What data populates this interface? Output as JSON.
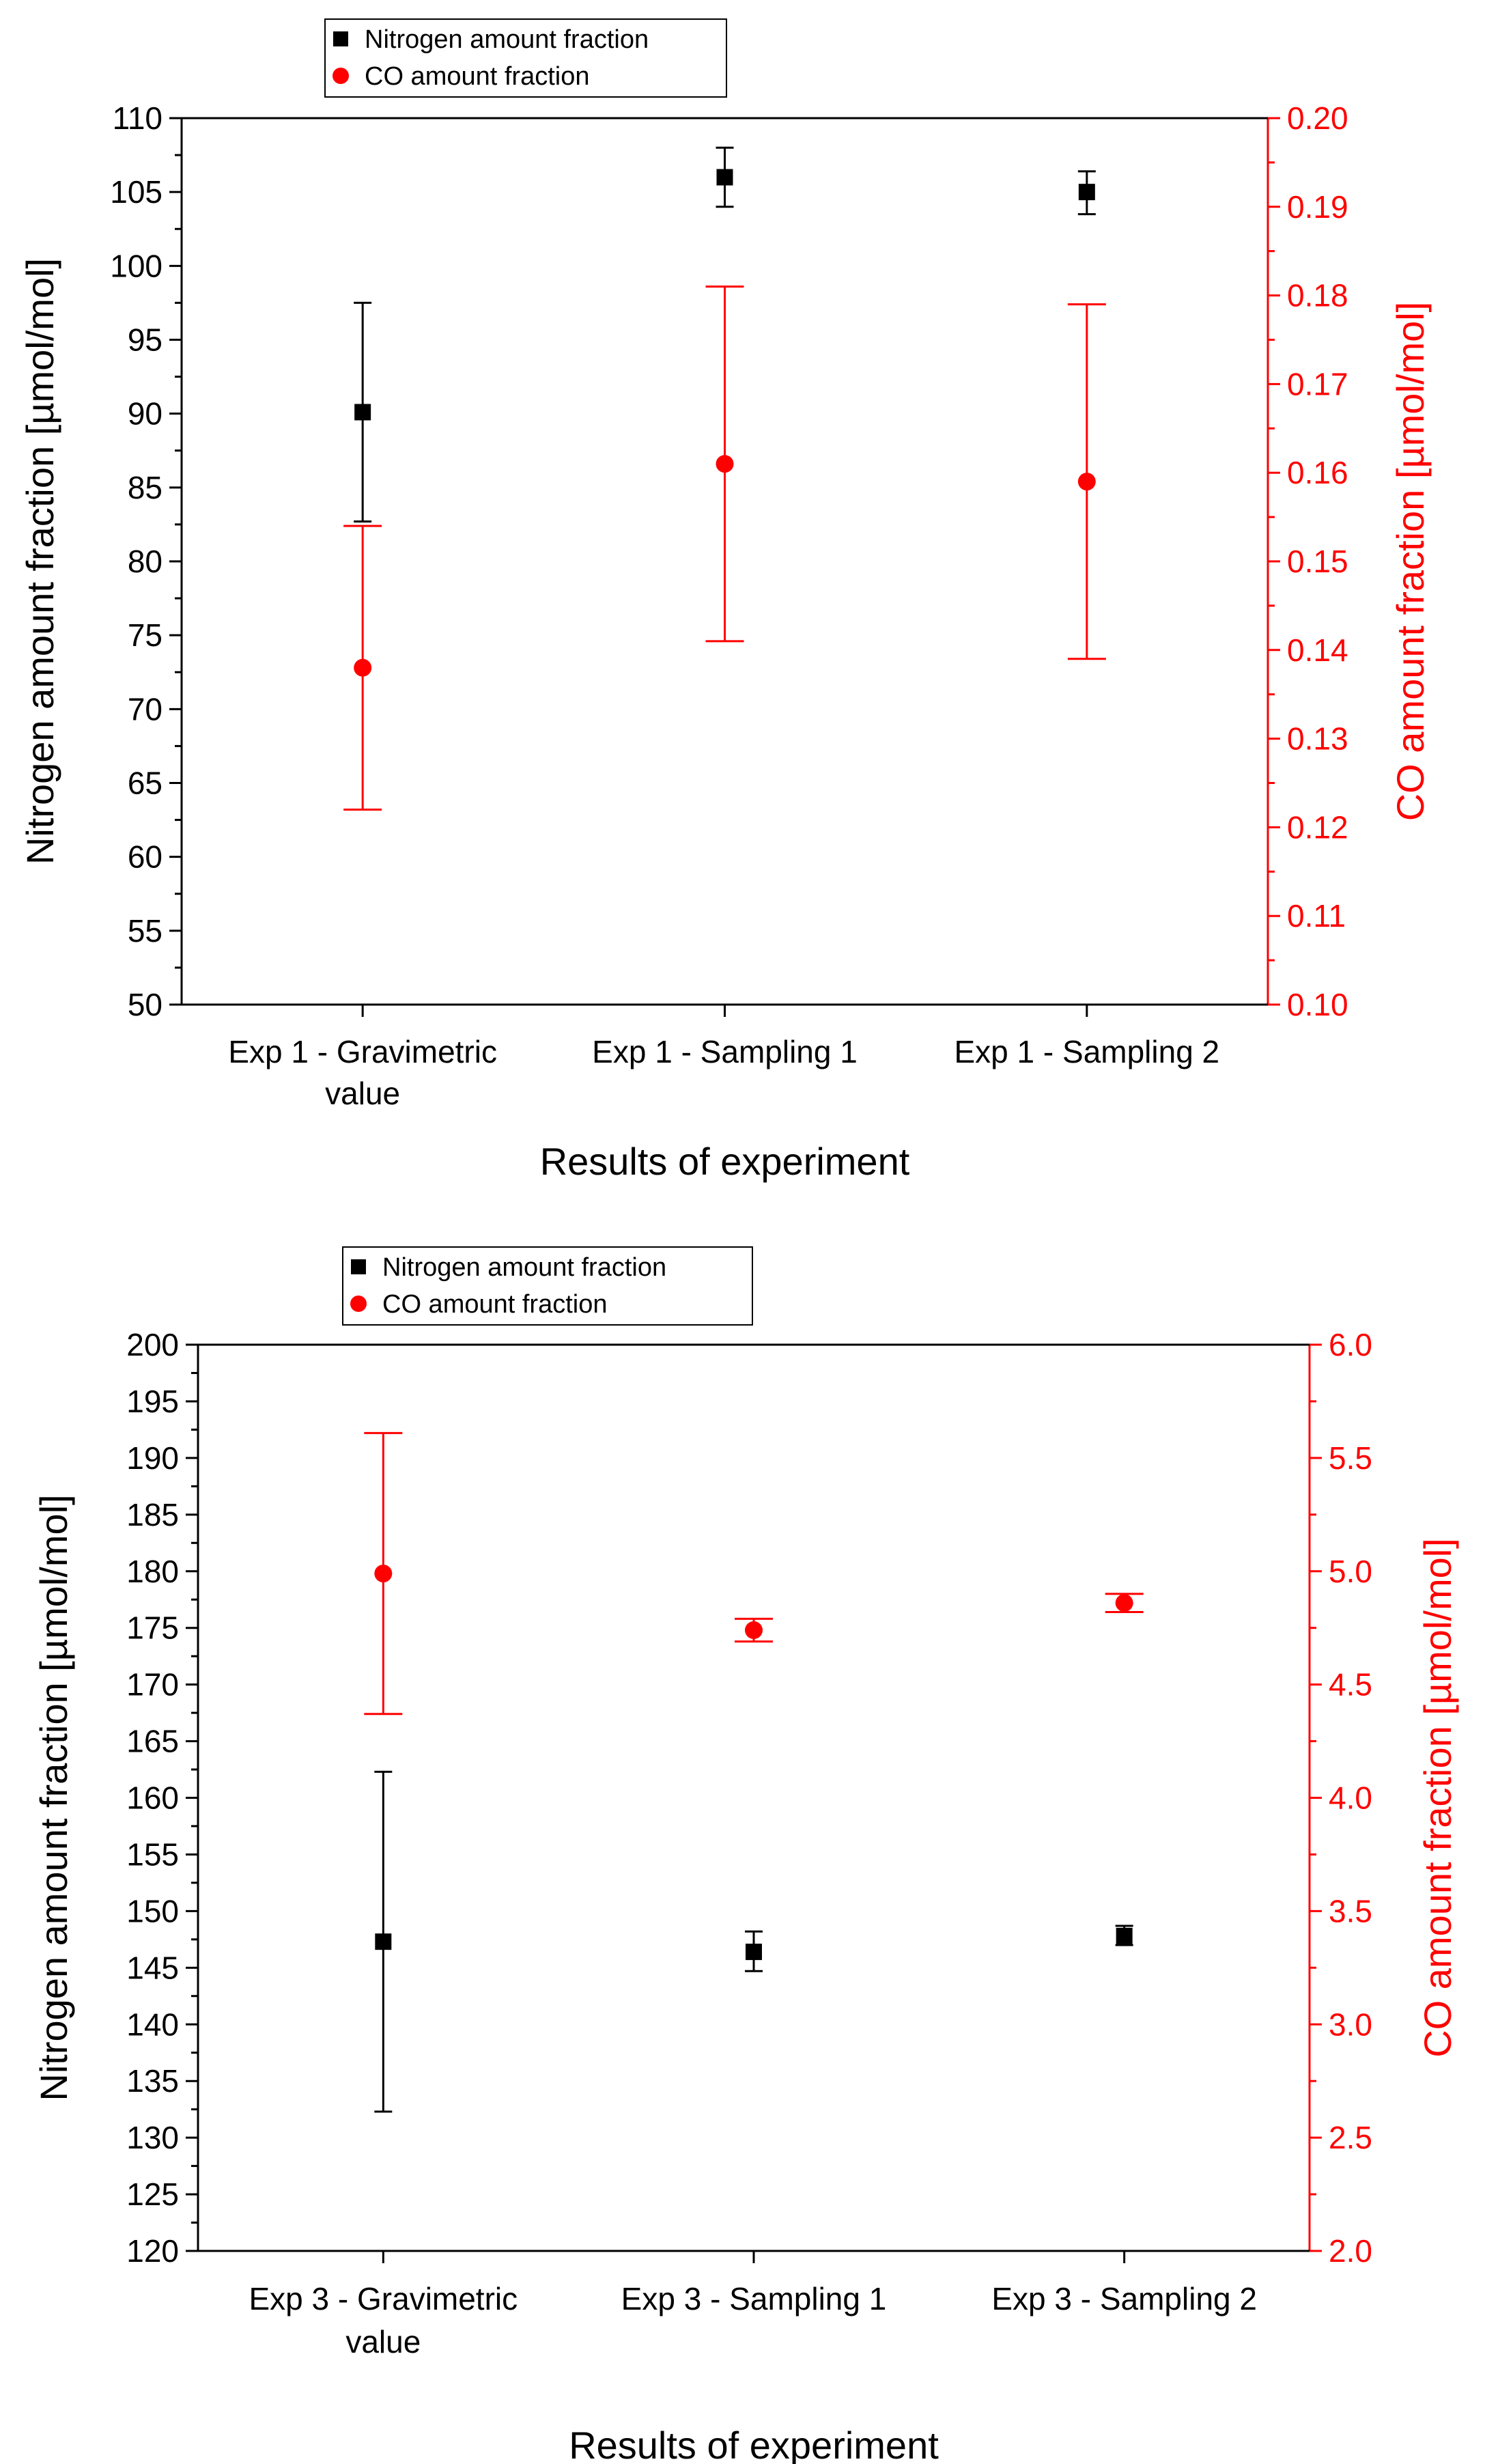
{
  "chart_data": [
    {
      "type": "scatter",
      "title": "",
      "xlabel": "Results of experiment",
      "ylabel": "Nitrogen amount fraction [µmol/mol]",
      "y2label": "CO amount fraction [µmol/mol]",
      "categories": [
        "Exp 1 - Gravimetric|value",
        "Exp 1 - Sampling 1",
        "Exp 1 - Sampling 2"
      ],
      "ylim": [
        50,
        110
      ],
      "yticks": [
        50,
        55,
        60,
        65,
        70,
        75,
        80,
        85,
        90,
        95,
        100,
        105,
        110
      ],
      "y2lim": [
        0.1,
        0.2
      ],
      "y2ticks": [
        "0.10",
        "0.11",
        "0.12",
        "0.13",
        "0.14",
        "0.15",
        "0.16",
        "0.17",
        "0.18",
        "0.19",
        "0.20"
      ],
      "legend": {
        "position": "top-center",
        "entries": [
          "Nitrogen amount fraction",
          "CO amount fraction"
        ]
      },
      "series": [
        {
          "name": "Nitrogen amount fraction",
          "axis": "left",
          "color": "#000000",
          "marker": "square",
          "values": [
            90.1,
            106.0,
            105.0
          ],
          "err_low": [
            82.7,
            104.0,
            103.5
          ],
          "err_high": [
            97.5,
            108.0,
            106.4
          ]
        },
        {
          "name": "CO amount fraction",
          "axis": "right",
          "color": "#ff0000",
          "marker": "circle",
          "values": [
            0.138,
            0.161,
            0.159
          ],
          "err_low": [
            0.122,
            0.141,
            0.139
          ],
          "err_high": [
            0.154,
            0.181,
            0.179
          ]
        }
      ]
    },
    {
      "type": "scatter",
      "title": "",
      "xlabel": "Results of experiment",
      "ylabel": "Nitrogen amount fraction [µmol/mol]",
      "y2label": "CO amount fraction [µmol/mol]",
      "categories": [
        "Exp 3 - Gravimetric|value",
        "Exp 3 - Sampling 1",
        "Exp 3 - Sampling 2"
      ],
      "ylim": [
        120,
        200
      ],
      "yticks": [
        120,
        125,
        130,
        135,
        140,
        145,
        150,
        155,
        160,
        165,
        170,
        175,
        180,
        185,
        190,
        195,
        200
      ],
      "y2lim": [
        2.0,
        6.0
      ],
      "y2ticks": [
        "2.0",
        "2.5",
        "3.0",
        "3.5",
        "4.0",
        "4.5",
        "5.0",
        "5.5",
        "6.0"
      ],
      "legend": {
        "position": "top-center",
        "entries": [
          "Nitrogen amount fraction",
          "CO amount fraction"
        ]
      },
      "series": [
        {
          "name": "Nitrogen amount fraction",
          "axis": "left",
          "color": "#000000",
          "marker": "square",
          "values": [
            147.3,
            146.4,
            147.8
          ],
          "err_low": [
            132.3,
            144.7,
            147.0
          ],
          "err_high": [
            162.3,
            148.2,
            148.7
          ]
        },
        {
          "name": "CO amount fraction",
          "axis": "right",
          "color": "#ff0000",
          "marker": "circle",
          "values": [
            4.99,
            4.74,
            4.86
          ],
          "err_low": [
            4.37,
            4.69,
            4.82
          ],
          "err_high": [
            5.61,
            4.79,
            4.9
          ]
        }
      ]
    }
  ]
}
